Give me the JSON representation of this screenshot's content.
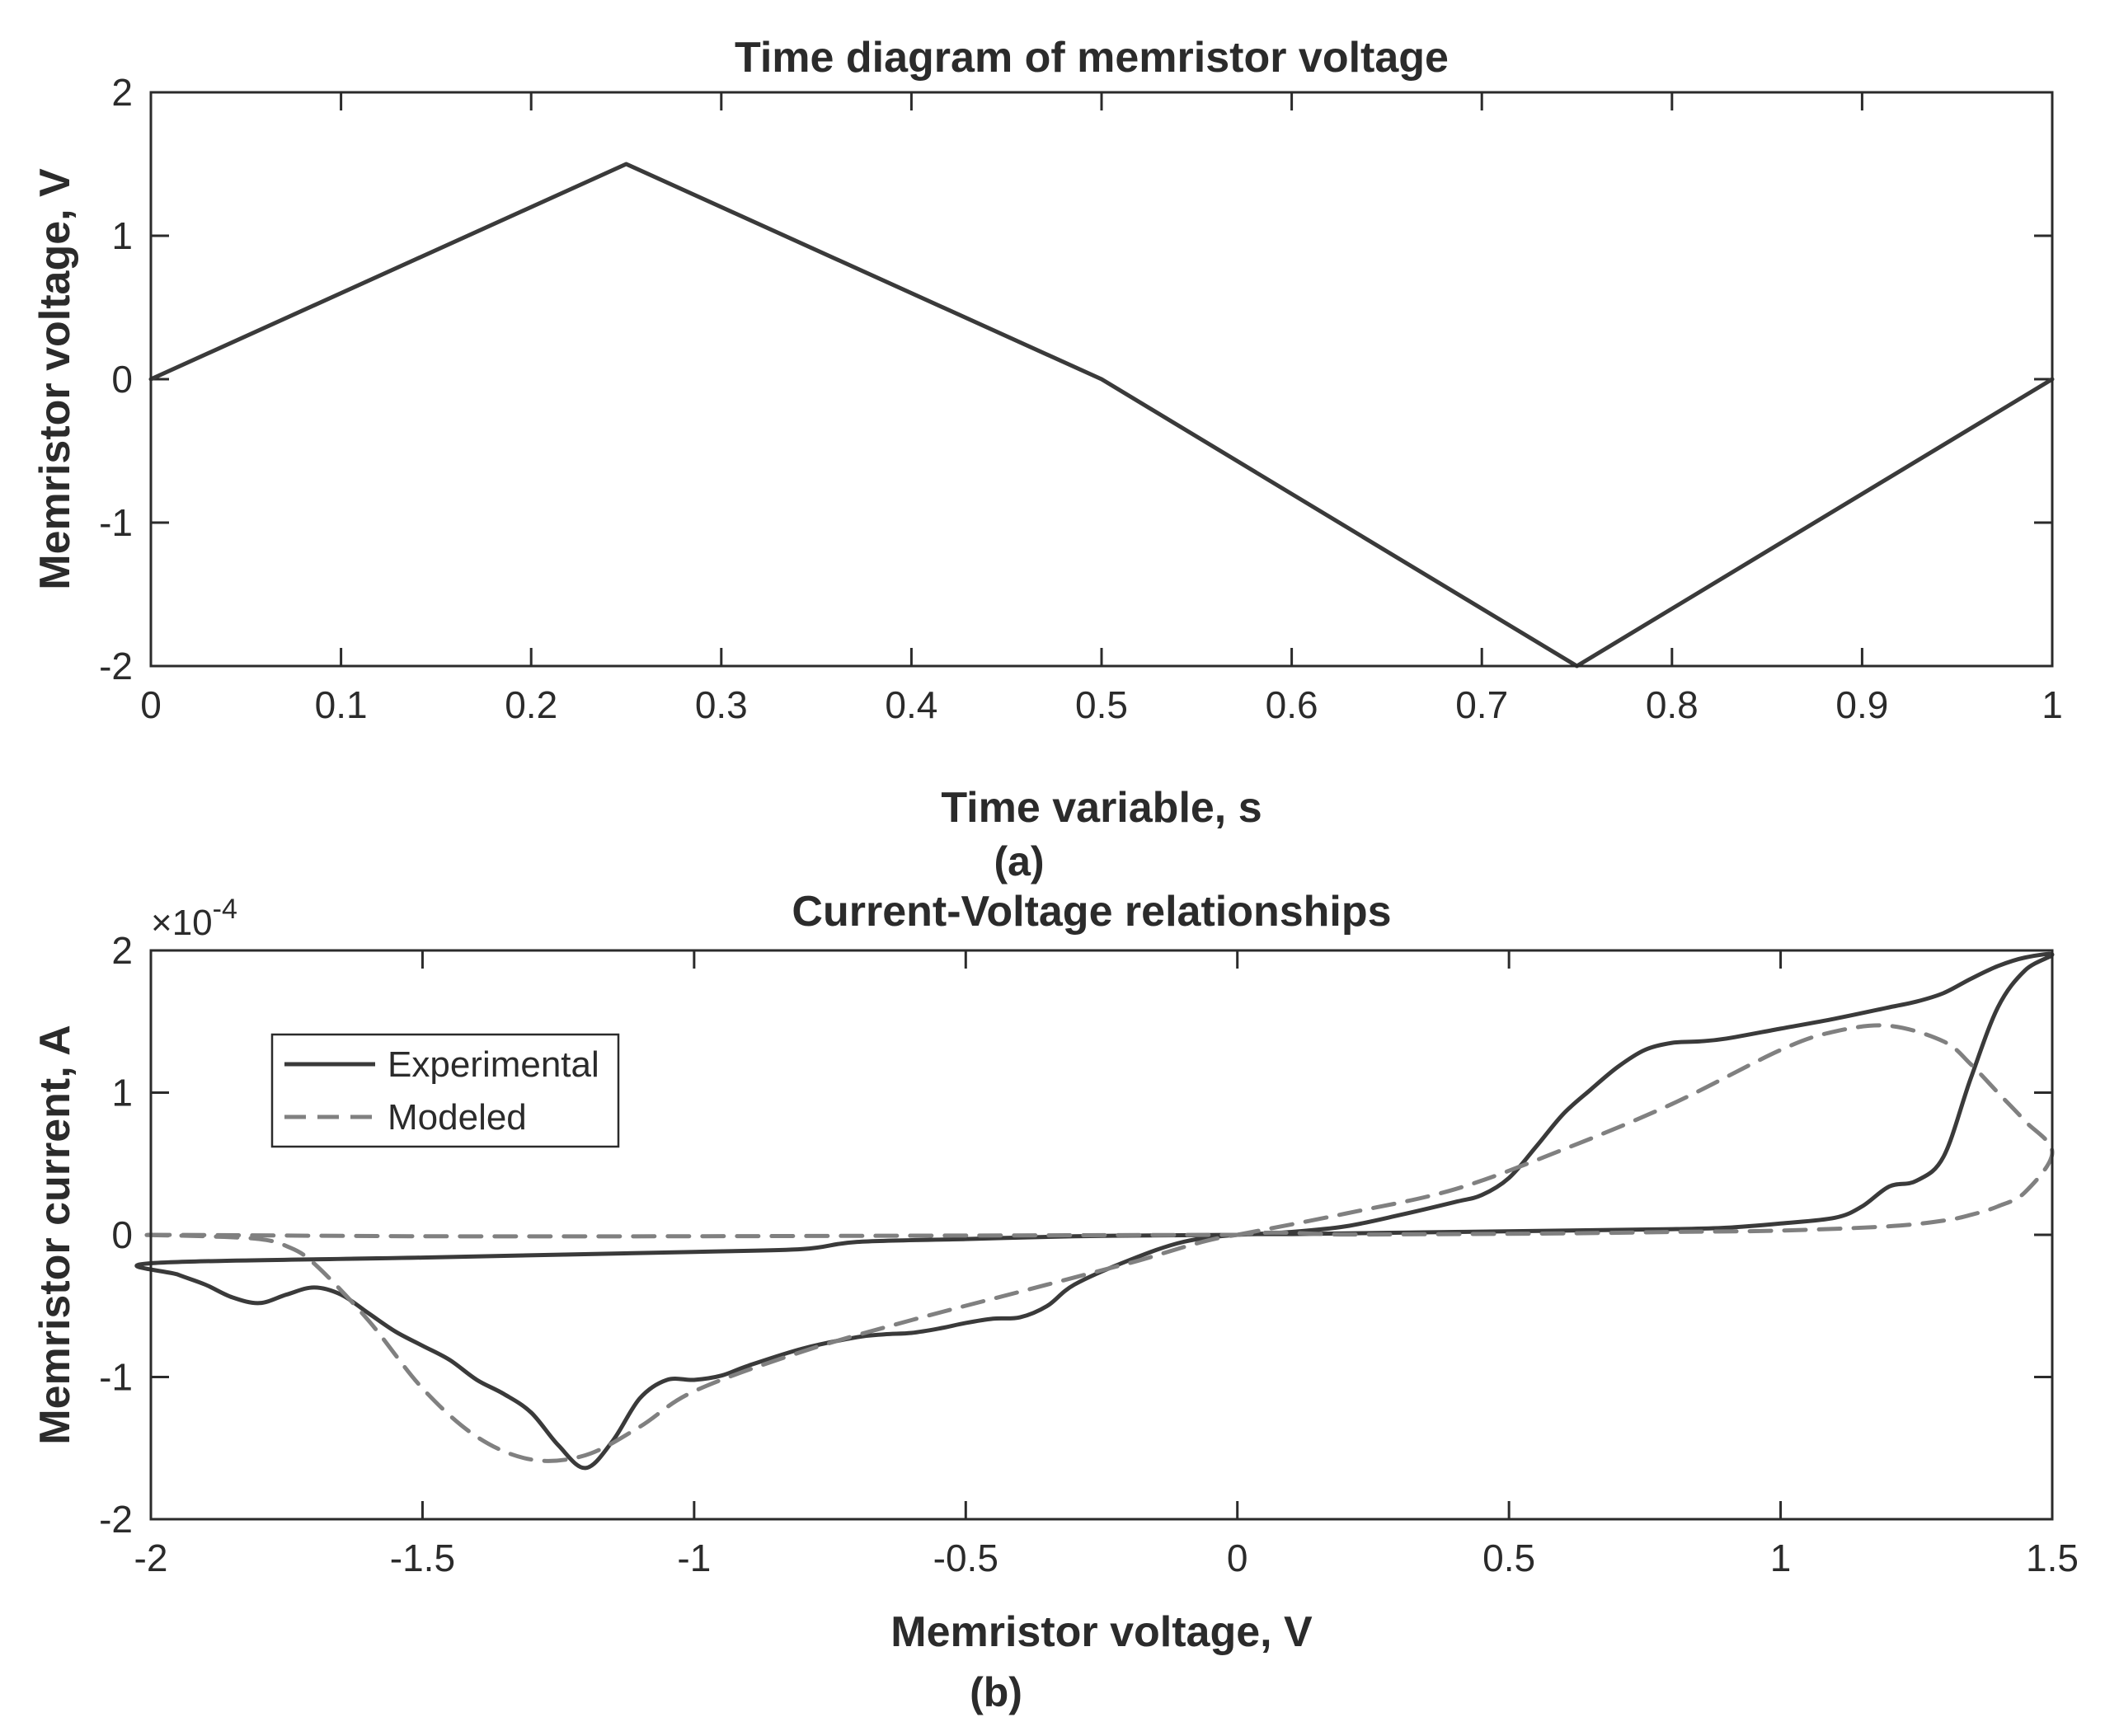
{
  "chart_data": [
    {
      "type": "line",
      "title": "Time diagram of memristor voltage",
      "xlabel": "Time variable, s",
      "ylabel": "Memristor voltage, V",
      "panel_label": "(a)",
      "xlim": [
        0,
        1
      ],
      "ylim": [
        -2,
        2
      ],
      "x_ticks": [
        "0",
        "0.1",
        "0.2",
        "0.3",
        "0.4",
        "0.5",
        "0.6",
        "0.7",
        "0.8",
        "0.9",
        "1"
      ],
      "y_ticks": [
        "-2",
        "-1",
        "0",
        "1",
        "2"
      ],
      "grid": false,
      "series": [
        {
          "color": "#3a3a3a",
          "dash": "solid",
          "x": [
            0,
            0.25,
            0.5,
            0.75,
            1
          ],
          "y": [
            0,
            1.5,
            0,
            -2,
            0
          ]
        }
      ]
    },
    {
      "type": "line",
      "title": "Current-Voltage relationships",
      "xlabel": "Memristor voltage, V",
      "ylabel": "Memristor current, A",
      "panel_label": "(b)",
      "y_exponent_base": "×10",
      "y_exponent": "-4",
      "xlim": [
        -2,
        1.5
      ],
      "ylim": [
        -2,
        2
      ],
      "x_ticks": [
        "-2",
        "-1.5",
        "-1",
        "-0.5",
        "0",
        "0.5",
        "1",
        "1.5"
      ],
      "y_ticks": [
        "-2",
        "-1",
        "0",
        "1",
        "2"
      ],
      "grid": false,
      "legend_position": "upper-left",
      "series": [
        {
          "name": "Experimental",
          "color": "#3a3a3a",
          "dash": "solid",
          "x": [
            0,
            0.1,
            0.2,
            0.3,
            0.4,
            0.45,
            0.5,
            0.55,
            0.6,
            0.65,
            0.7,
            0.75,
            0.8,
            0.85,
            0.9,
            1.0,
            1.1,
            1.2,
            1.25,
            1.3,
            1.35,
            1.4,
            1.45,
            1.5,
            1.45,
            1.4,
            1.35,
            1.3,
            1.25,
            1.2,
            1.15,
            1.1,
            1.0,
            0.9,
            0.8,
            0.6,
            0.4,
            0.2,
            0.1,
            0,
            -0.1,
            -0.2,
            -0.3,
            -0.35,
            -0.4,
            -0.45,
            -0.5,
            -0.55,
            -0.6,
            -0.65,
            -0.7,
            -0.8,
            -0.9,
            -0.95,
            -1.0,
            -1.05,
            -1.1,
            -1.15,
            -1.2,
            -1.25,
            -1.3,
            -1.35,
            -1.4,
            -1.45,
            -1.5,
            -1.55,
            -1.6,
            -1.65,
            -1.7,
            -1.75,
            -1.8,
            -1.85,
            -1.9,
            -1.95,
            -2.0,
            -1.5,
            -1.0,
            -0.8,
            -0.7,
            -0.5,
            -0.3,
            -0.1,
            0
          ],
          "y": [
            0,
            0.02,
            0.06,
            0.14,
            0.23,
            0.28,
            0.4,
            0.62,
            0.85,
            1.02,
            1.18,
            1.3,
            1.35,
            1.36,
            1.38,
            1.45,
            1.52,
            1.6,
            1.64,
            1.7,
            1.8,
            1.89,
            1.95,
            1.97,
            1.86,
            1.6,
            1.1,
            0.55,
            0.38,
            0.34,
            0.2,
            0.12,
            0.08,
            0.05,
            0.04,
            0.03,
            0.02,
            0.01,
            0.005,
            0,
            -0.05,
            -0.18,
            -0.35,
            -0.5,
            -0.58,
            -0.59,
            -0.62,
            -0.66,
            -0.69,
            -0.7,
            -0.72,
            -0.8,
            -0.92,
            -0.99,
            -1.02,
            -1.02,
            -1.15,
            -1.45,
            -1.64,
            -1.48,
            -1.25,
            -1.12,
            -1.02,
            -0.88,
            -0.78,
            -0.68,
            -0.55,
            -0.42,
            -0.37,
            -0.42,
            -0.48,
            -0.44,
            -0.35,
            -0.28,
            -0.2,
            -0.16,
            -0.12,
            -0.1,
            -0.05,
            -0.03,
            -0.01,
            -0.003,
            0
          ]
        },
        {
          "name": "Modeled",
          "color": "#808080",
          "dash": "dashed",
          "x": [
            0,
            0.2,
            0.4,
            0.6,
            0.8,
            1.0,
            1.1,
            1.2,
            1.3,
            1.35,
            1.4,
            1.45,
            1.5,
            1.45,
            1.4,
            1.35,
            1.3,
            1.2,
            1.0,
            0.8,
            0.6,
            0.4,
            0.2,
            0,
            -0.2,
            -0.4,
            -0.6,
            -0.8,
            -1.0,
            -1.1,
            -1.2,
            -1.3,
            -1.4,
            -1.5,
            -1.6,
            -1.7,
            -1.75,
            -1.8,
            -1.9,
            -2.0,
            -1.5,
            -1.0,
            -0.5,
            0
          ],
          "y": [
            0,
            0.15,
            0.32,
            0.6,
            0.92,
            1.3,
            1.43,
            1.47,
            1.36,
            1.2,
            1.0,
            0.8,
            0.58,
            0.3,
            0.2,
            0.14,
            0.1,
            0.06,
            0.03,
            0.02,
            0.01,
            0.005,
            0.002,
            0,
            -0.2,
            -0.4,
            -0.6,
            -0.82,
            -1.1,
            -1.35,
            -1.55,
            -1.58,
            -1.42,
            -1.08,
            -0.6,
            -0.2,
            -0.08,
            -0.03,
            -0.01,
            0,
            -0.01,
            -0.01,
            -0.005,
            0
          ]
        }
      ]
    }
  ]
}
